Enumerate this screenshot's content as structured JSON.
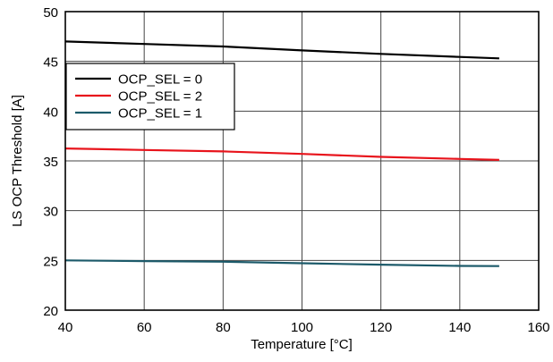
{
  "chart_data": {
    "type": "line",
    "title": "",
    "xlabel": "Temperature [°C]",
    "ylabel": "LS OCP Threshold [A]",
    "xlim": [
      40,
      160
    ],
    "ylim": [
      20,
      50
    ],
    "xticks": [
      40,
      60,
      80,
      100,
      120,
      140,
      160
    ],
    "yticks": [
      20,
      25,
      30,
      35,
      40,
      45,
      50
    ],
    "grid": true,
    "legend_position": "top-left",
    "series": [
      {
        "name": "OCP_SEL = 0",
        "color": "#000000",
        "x": [
          40,
          60,
          80,
          100,
          120,
          140,
          150
        ],
        "y": [
          47.0,
          46.75,
          46.5,
          46.1,
          45.75,
          45.45,
          45.3
        ]
      },
      {
        "name": "OCP_SEL = 2",
        "color": "#e8141c",
        "x": [
          40,
          60,
          80,
          100,
          120,
          140,
          150
        ],
        "y": [
          36.25,
          36.1,
          35.95,
          35.7,
          35.4,
          35.2,
          35.1
        ]
      },
      {
        "name": "OCP_SEL = 1",
        "color": "#1c5a6a",
        "x": [
          40,
          60,
          80,
          100,
          120,
          140,
          150
        ],
        "y": [
          25.0,
          24.93,
          24.87,
          24.72,
          24.57,
          24.45,
          24.43
        ]
      }
    ]
  }
}
